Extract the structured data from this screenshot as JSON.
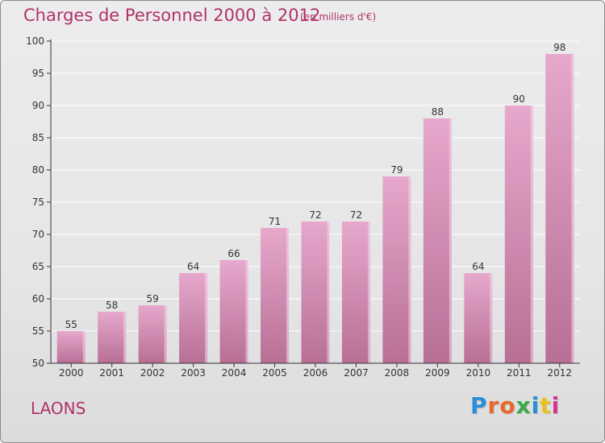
{
  "header": {
    "title": "Charges de Personnel 2000 à 2012",
    "subtitle": "(en milliers d'€)"
  },
  "footer": {
    "place": "LAONS",
    "logo_text": "Proxiti",
    "logo_colors": [
      "#2a8fd6",
      "#e8682a",
      "#e8682a",
      "#3aa84a",
      "#2a8fd6",
      "#e8c020",
      "#d6348c"
    ]
  },
  "colors": {
    "bar_top": "#e6a8cc",
    "bar_bottom": "#b86f96",
    "bar_edge": "#f6d8e8",
    "axis": "#333333",
    "grid": "#ffffff",
    "title": "#b0326a"
  },
  "chart_data": {
    "type": "bar",
    "categories": [
      "2000",
      "2001",
      "2002",
      "2003",
      "2004",
      "2005",
      "2006",
      "2007",
      "2008",
      "2009",
      "2010",
      "2011",
      "2012"
    ],
    "values": [
      55,
      58,
      59,
      64,
      66,
      71,
      72,
      72,
      79,
      88,
      64,
      90,
      98
    ],
    "data_labels": [
      "55",
      "58",
      "59",
      "64",
      "66",
      "71",
      "72",
      "72",
      "79",
      "88",
      "64",
      "90",
      "98"
    ],
    "title": "Charges de Personnel 2000 à 2012",
    "subtitle": "(en milliers d'€)",
    "xlabel": "",
    "ylabel": "",
    "ylim": [
      50,
      100
    ],
    "yticks": [
      50,
      55,
      60,
      65,
      70,
      75,
      80,
      85,
      90,
      95,
      100
    ],
    "grid": true,
    "legend": "none"
  }
}
